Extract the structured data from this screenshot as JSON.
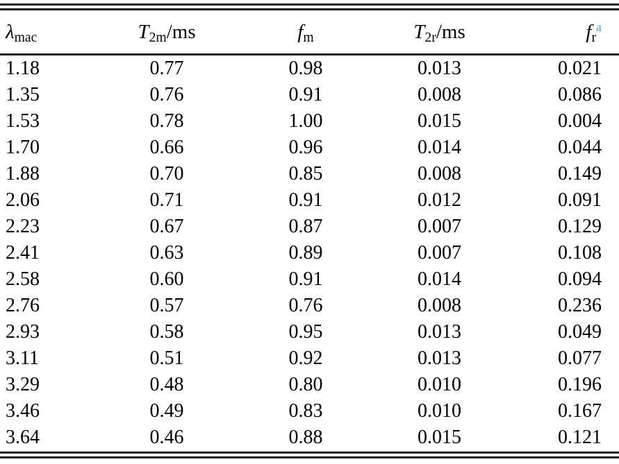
{
  "table": {
    "columns": [
      {
        "symbol": "λ",
        "sub": "mac"
      },
      {
        "symbol": "T",
        "sub": "2m",
        "unit": "/ms"
      },
      {
        "symbol": "f",
        "sub": "m"
      },
      {
        "symbol": "T",
        "sub": "2r",
        "unit": "/ms"
      },
      {
        "symbol": "f",
        "sub": "r",
        "footnote": "a"
      }
    ],
    "rows": [
      [
        "1.18",
        "0.77",
        "0.98",
        "0.013",
        "0.021"
      ],
      [
        "1.35",
        "0.76",
        "0.91",
        "0.008",
        "0.086"
      ],
      [
        "1.53",
        "0.78",
        "1.00",
        "0.015",
        "0.004"
      ],
      [
        "1.70",
        "0.66",
        "0.96",
        "0.014",
        "0.044"
      ],
      [
        "1.88",
        "0.70",
        "0.85",
        "0.008",
        "0.149"
      ],
      [
        "2.06",
        "0.71",
        "0.91",
        "0.012",
        "0.091"
      ],
      [
        "2.23",
        "0.67",
        "0.87",
        "0.007",
        "0.129"
      ],
      [
        "2.41",
        "0.63",
        "0.89",
        "0.007",
        "0.108"
      ],
      [
        "2.58",
        "0.60",
        "0.91",
        "0.014",
        "0.094"
      ],
      [
        "2.76",
        "0.57",
        "0.76",
        "0.008",
        "0.236"
      ],
      [
        "2.93",
        "0.58",
        "0.95",
        "0.013",
        "0.049"
      ],
      [
        "3.11",
        "0.51",
        "0.92",
        "0.013",
        "0.077"
      ],
      [
        "3.29",
        "0.48",
        "0.80",
        "0.010",
        "0.196"
      ],
      [
        "3.46",
        "0.49",
        "0.83",
        "0.010",
        "0.167"
      ],
      [
        "3.64",
        "0.46",
        "0.88",
        "0.015",
        "0.121"
      ]
    ]
  },
  "colors": {
    "text": "#000000",
    "rule": "#141414",
    "footnote_marker": "#41a5e1"
  }
}
